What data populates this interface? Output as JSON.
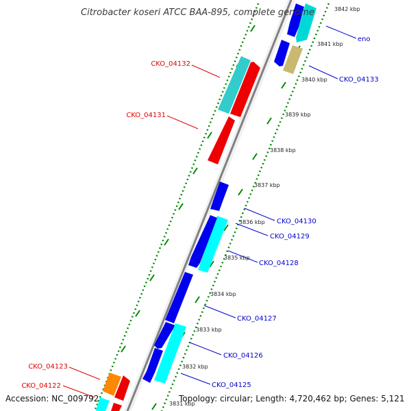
{
  "title": "Citrobacter koseri ATCC BAA-895, complete genome",
  "footer": {
    "accession": "Accession: NC_009792",
    "topology": "Topology: circular; Length: 4,720,462 bp; Genes: 5,121"
  },
  "ticks": [
    "3842 kbp",
    "3841 kbp",
    "3840 kbp",
    "3839 kbp",
    "3838 kbp",
    "3837 kbp",
    "3836 kbp",
    "3835 kbp",
    "3834 kbp",
    "3833 kbp",
    "3832 kbp",
    "3831 kbp"
  ],
  "gene_labels": {
    "left": [
      "CKO_04132",
      "CKO_04131",
      "CKO_04123",
      "CKO_04122"
    ],
    "right": [
      "eno",
      "CKO_04133",
      "CKO_04130",
      "CKO_04129",
      "CKO_04128",
      "CKO_04127",
      "CKO_04126",
      "CKO_04125"
    ]
  },
  "colors": {
    "forward_gene": "#0000ee",
    "forward_label": "#0000cc",
    "reverse_gene": "#ee0000",
    "reverse_label": "#dd0000",
    "cyan_gene": "#00d8d8",
    "orange_gene": "#ff8800",
    "tan_gene": "#c8b870",
    "backbone": "#808080",
    "dotted_track": "#008800"
  }
}
